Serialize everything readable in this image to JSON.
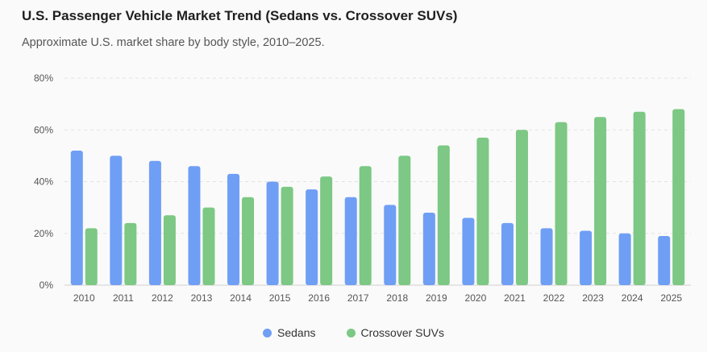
{
  "title": "U.S. Passenger Vehicle Market Trend (Sedans vs. Crossover SUVs)",
  "subtitle": "Approximate U.S. market share by body style, 2010–2025.",
  "colors": {
    "sedans": "#6f9ef5",
    "suvs": "#7cc884",
    "grid": "#e3e3e3",
    "axis": "#555555"
  },
  "legend": [
    {
      "label": "Sedans",
      "color": "#6f9ef5"
    },
    {
      "label": "Crossover SUVs",
      "color": "#7cc884"
    }
  ],
  "chart_data": {
    "type": "bar",
    "title": "U.S. Passenger Vehicle Market Trend (Sedans vs. Crossover SUVs)",
    "subtitle": "Approximate U.S. market share by body style, 2010–2025.",
    "xlabel": "",
    "ylabel": "",
    "ylim": [
      0,
      80
    ],
    "yticks": [
      "0%",
      "20%",
      "40%",
      "60%",
      "80%"
    ],
    "grid": true,
    "legend_position": "bottom",
    "categories": [
      "2010",
      "2011",
      "2012",
      "2013",
      "2014",
      "2015",
      "2016",
      "2017",
      "2018",
      "2019",
      "2020",
      "2021",
      "2022",
      "2023",
      "2024",
      "2025"
    ],
    "series": [
      {
        "name": "Sedans",
        "values": [
          52,
          50,
          48,
          46,
          43,
          40,
          37,
          34,
          31,
          28,
          26,
          24,
          22,
          21,
          20,
          19
        ]
      },
      {
        "name": "Crossover SUVs",
        "values": [
          22,
          24,
          27,
          30,
          34,
          38,
          42,
          46,
          50,
          54,
          57,
          60,
          63,
          65,
          67,
          68
        ]
      }
    ]
  }
}
